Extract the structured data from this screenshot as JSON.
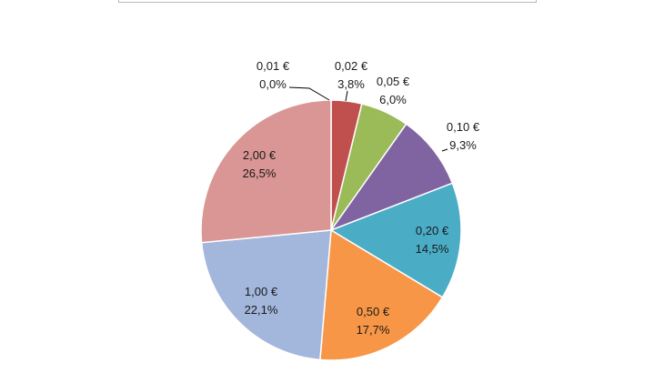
{
  "chart_data": {
    "type": "pie",
    "slices": [
      {
        "label": "0,01 €",
        "percent_label": "0,0%",
        "value": 0.0,
        "color": "#4f81bd"
      },
      {
        "label": "0,02 €",
        "percent_label": "3,8%",
        "value": 3.8,
        "color": "#c0504d"
      },
      {
        "label": "0,05 €",
        "percent_label": "6,0%",
        "value": 6.0,
        "color": "#9bbb59"
      },
      {
        "label": "0,10 €",
        "percent_label": "9,3%",
        "value": 9.3,
        "color": "#8064a2"
      },
      {
        "label": "0,20 €",
        "percent_label": "14,5%",
        "value": 14.5,
        "color": "#4bacc6"
      },
      {
        "label": "0,50 €",
        "percent_label": "17,7%",
        "value": 17.7,
        "color": "#f79646"
      },
      {
        "label": "1,00 €",
        "percent_label": "22,1%",
        "value": 22.1,
        "color": "#a3b6dc"
      },
      {
        "label": "2,00 €",
        "percent_label": "26,5%",
        "value": 26.5,
        "color": "#d99694"
      }
    ]
  }
}
